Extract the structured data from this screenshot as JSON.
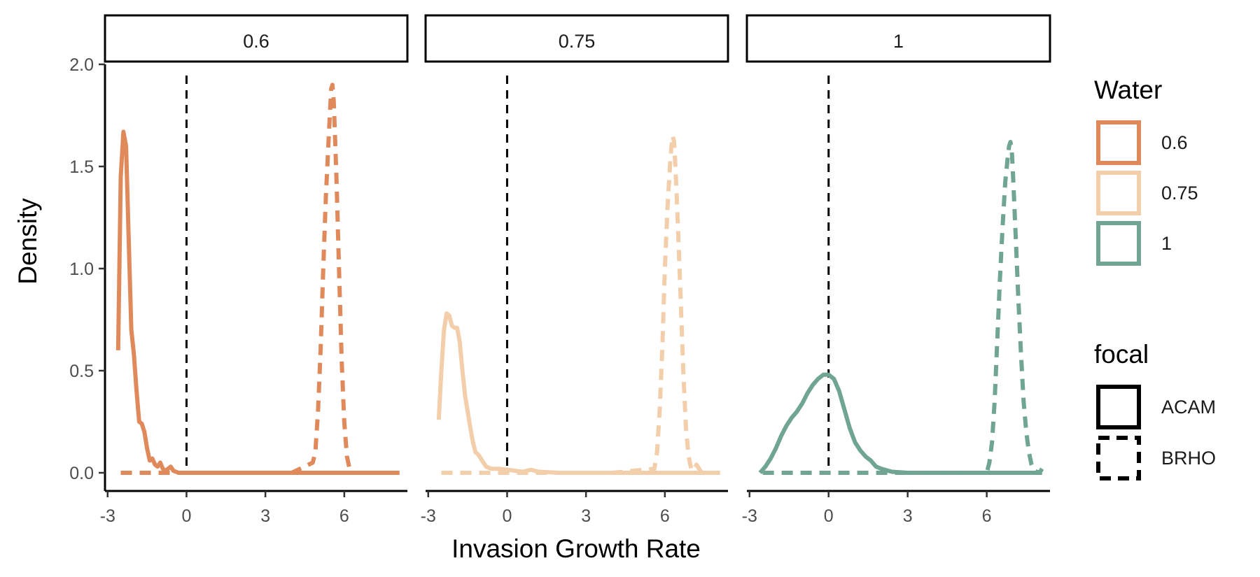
{
  "chart_data": {
    "type": "line",
    "title": "",
    "xlabel": "Invasion Growth Rate",
    "ylabel": "Density",
    "xlim": [
      -3.1,
      8.4
    ],
    "ylim": [
      -0.18,
      2.0
    ],
    "x_ticks": [
      -3,
      0,
      3,
      6
    ],
    "x_tick_labels": [
      "-3",
      "0",
      "3",
      "6"
    ],
    "y_ticks": [
      0,
      0.5,
      1,
      1.5,
      2
    ],
    "y_tick_labels": [
      "0.0",
      "0.5",
      "1.0",
      "1.5",
      "2.0"
    ],
    "grid": false,
    "reference_line": {
      "x": 0,
      "style": "dashed",
      "color": "#000000"
    },
    "legend_placement": "right",
    "legends": [
      {
        "title": "Water",
        "entries": [
          {
            "label": "0.6",
            "color": "#E08A5C"
          },
          {
            "label": "0.75",
            "color": "#F3CEAA"
          },
          {
            "label": "1",
            "color": "#6FA592"
          }
        ]
      },
      {
        "title": "focal",
        "entries": [
          {
            "label": "ACAM",
            "linestyle": "solid"
          },
          {
            "label": "BRHO",
            "linestyle": "dashed"
          }
        ]
      }
    ],
    "panels": [
      {
        "label": "0.6",
        "color": "#E08A5C",
        "series": [
          {
            "water": "0.6",
            "focal": "ACAM",
            "linestyle": "solid",
            "points": [
              [
                -2.6,
                0.6
              ],
              [
                -2.5,
                1.45
              ],
              [
                -2.4,
                1.67
              ],
              [
                -2.3,
                1.6
              ],
              [
                -2.2,
                1.15
              ],
              [
                -2.1,
                0.7
              ],
              [
                -2.0,
                0.58
              ],
              [
                -1.9,
                0.4
              ],
              [
                -1.8,
                0.25
              ],
              [
                -1.7,
                0.24
              ],
              [
                -1.6,
                0.2
              ],
              [
                -1.5,
                0.12
              ],
              [
                -1.4,
                0.06
              ],
              [
                -1.3,
                0.07
              ],
              [
                -1.2,
                0.04
              ],
              [
                -1.1,
                0.03
              ],
              [
                -1.0,
                0.05
              ],
              [
                -0.9,
                0.02
              ],
              [
                -0.8,
                0.01
              ],
              [
                -0.6,
                0.03
              ],
              [
                -0.5,
                0.01
              ],
              [
                -0.3,
                0.0
              ],
              [
                0,
                0
              ],
              [
                2,
                0
              ],
              [
                4,
                0
              ],
              [
                6,
                0
              ],
              [
                8.1,
                0
              ]
            ]
          },
          {
            "water": "0.6",
            "focal": "BRHO",
            "linestyle": "dashed",
            "points": [
              [
                -2.5,
                0
              ],
              [
                -1,
                0
              ],
              [
                0,
                0
              ],
              [
                2,
                0
              ],
              [
                4,
                0
              ],
              [
                4.8,
                0.05
              ],
              [
                4.9,
                0.1
              ],
              [
                5.0,
                0.3
              ],
              [
                5.1,
                0.6
              ],
              [
                5.2,
                1.0
              ],
              [
                5.3,
                1.35
              ],
              [
                5.4,
                1.62
              ],
              [
                5.45,
                1.75
              ],
              [
                5.5,
                1.88
              ],
              [
                5.55,
                1.9
              ],
              [
                5.6,
                1.82
              ],
              [
                5.7,
                1.45
              ],
              [
                5.8,
                1.0
              ],
              [
                5.9,
                0.55
              ],
              [
                6.0,
                0.25
              ],
              [
                6.1,
                0.08
              ],
              [
                6.2,
                0.02
              ],
              [
                6.3,
                0.0
              ],
              [
                7,
                0
              ],
              [
                8.1,
                0
              ]
            ]
          }
        ]
      },
      {
        "label": "0.75",
        "color": "#F3CEAA",
        "series": [
          {
            "water": "0.75",
            "focal": "ACAM",
            "linestyle": "solid",
            "points": [
              [
                -2.6,
                0.26
              ],
              [
                -2.5,
                0.5
              ],
              [
                -2.4,
                0.7
              ],
              [
                -2.3,
                0.78
              ],
              [
                -2.2,
                0.77
              ],
              [
                -2.1,
                0.72
              ],
              [
                -2.0,
                0.71
              ],
              [
                -1.9,
                0.71
              ],
              [
                -1.8,
                0.64
              ],
              [
                -1.7,
                0.5
              ],
              [
                -1.6,
                0.38
              ],
              [
                -1.5,
                0.3
              ],
              [
                -1.4,
                0.22
              ],
              [
                -1.3,
                0.15
              ],
              [
                -1.2,
                0.1
              ],
              [
                -1.1,
                0.09
              ],
              [
                -1.0,
                0.07
              ],
              [
                -0.9,
                0.05
              ],
              [
                -0.8,
                0.03
              ],
              [
                -0.6,
                0.02
              ],
              [
                -0.3,
                0.02
              ],
              [
                0,
                0.015
              ],
              [
                0.3,
                0.01
              ],
              [
                0.6,
                0.005
              ],
              [
                0.9,
                0.015
              ],
              [
                1.2,
                0.005
              ],
              [
                2,
                0
              ],
              [
                4,
                0
              ],
              [
                6,
                0
              ],
              [
                8.1,
                0
              ]
            ]
          },
          {
            "water": "0.75",
            "focal": "BRHO",
            "linestyle": "dashed",
            "points": [
              [
                -2.5,
                0
              ],
              [
                -1,
                0
              ],
              [
                0,
                0
              ],
              [
                2,
                0
              ],
              [
                4,
                0
              ],
              [
                5.6,
                0.02
              ],
              [
                5.7,
                0.1
              ],
              [
                5.8,
                0.3
              ],
              [
                5.9,
                0.6
              ],
              [
                6.0,
                1.0
              ],
              [
                6.1,
                1.3
              ],
              [
                6.2,
                1.52
              ],
              [
                6.25,
                1.6
              ],
              [
                6.3,
                1.65
              ],
              [
                6.35,
                1.62
              ],
              [
                6.4,
                1.5
              ],
              [
                6.5,
                1.2
              ],
              [
                6.6,
                0.85
              ],
              [
                6.7,
                0.5
              ],
              [
                6.8,
                0.22
              ],
              [
                6.9,
                0.08
              ],
              [
                7.0,
                0.02
              ],
              [
                7.1,
                0.01
              ],
              [
                7.2,
                0.04
              ],
              [
                7.3,
                0.02
              ],
              [
                7.4,
                0.0
              ],
              [
                8.1,
                0
              ]
            ]
          }
        ]
      },
      {
        "label": "1",
        "color": "#6FA592",
        "series": [
          {
            "water": "1",
            "focal": "ACAM",
            "linestyle": "solid",
            "points": [
              [
                -2.6,
                0.0
              ],
              [
                -2.4,
                0.03
              ],
              [
                -2.2,
                0.07
              ],
              [
                -2.0,
                0.12
              ],
              [
                -1.8,
                0.18
              ],
              [
                -1.6,
                0.23
              ],
              [
                -1.4,
                0.27
              ],
              [
                -1.2,
                0.3
              ],
              [
                -1.0,
                0.34
              ],
              [
                -0.8,
                0.39
              ],
              [
                -0.6,
                0.43
              ],
              [
                -0.4,
                0.46
              ],
              [
                -0.2,
                0.48
              ],
              [
                0,
                0.48
              ],
              [
                0.2,
                0.46
              ],
              [
                0.4,
                0.4
              ],
              [
                0.6,
                0.31
              ],
              [
                0.8,
                0.22
              ],
              [
                1.0,
                0.15
              ],
              [
                1.2,
                0.11
              ],
              [
                1.4,
                0.08
              ],
              [
                1.6,
                0.06
              ],
              [
                1.8,
                0.03
              ],
              [
                2.0,
                0.02
              ],
              [
                2.4,
                0.005
              ],
              [
                3,
                0
              ],
              [
                5,
                0
              ],
              [
                8.1,
                0
              ]
            ]
          },
          {
            "water": "1",
            "focal": "BRHO",
            "linestyle": "dashed",
            "points": [
              [
                -2.5,
                0
              ],
              [
                -1,
                0
              ],
              [
                0,
                0
              ],
              [
                2,
                0
              ],
              [
                4,
                0
              ],
              [
                6.0,
                0.0
              ],
              [
                6.1,
                0.05
              ],
              [
                6.2,
                0.15
              ],
              [
                6.3,
                0.35
              ],
              [
                6.4,
                0.65
              ],
              [
                6.5,
                0.95
              ],
              [
                6.6,
                1.2
              ],
              [
                6.7,
                1.42
              ],
              [
                6.8,
                1.55
              ],
              [
                6.85,
                1.6
              ],
              [
                6.9,
                1.62
              ],
              [
                6.95,
                1.58
              ],
              [
                7.0,
                1.45
              ],
              [
                7.1,
                1.15
              ],
              [
                7.2,
                0.85
              ],
              [
                7.3,
                0.58
              ],
              [
                7.4,
                0.35
              ],
              [
                7.5,
                0.2
              ],
              [
                7.6,
                0.1
              ],
              [
                7.7,
                0.04
              ],
              [
                7.8,
                0.01
              ],
              [
                8.0,
                0.0
              ],
              [
                8.1,
                0.02
              ]
            ]
          }
        ]
      }
    ]
  }
}
